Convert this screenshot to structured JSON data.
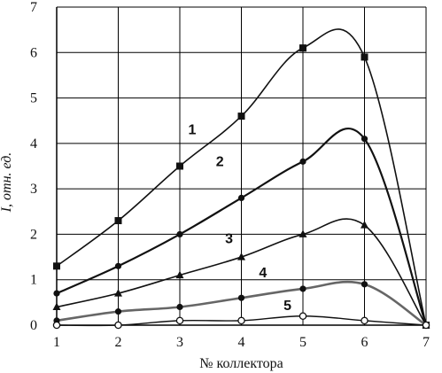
{
  "chart_data": {
    "type": "line",
    "xlabel": "№ коллектора",
    "ylabel": "I, отн. ед.",
    "x": [
      1,
      2,
      3,
      4,
      5,
      6,
      7
    ],
    "xlim": [
      1,
      7
    ],
    "ylim": [
      0,
      7
    ],
    "xticks": [
      "1",
      "2",
      "3",
      "4",
      "5",
      "6",
      "7"
    ],
    "yticks": [
      "0",
      "1",
      "2",
      "3",
      "4",
      "5",
      "6",
      "7"
    ],
    "grid": true,
    "legend": "none",
    "series": [
      {
        "name": "1",
        "values": [
          1.3,
          2.3,
          3.5,
          4.6,
          6.1,
          5.9,
          0.0
        ],
        "marker": "square"
      },
      {
        "name": "2",
        "values": [
          0.7,
          1.3,
          2.0,
          2.8,
          3.6,
          4.1,
          0.0
        ],
        "marker": "diamond"
      },
      {
        "name": "3",
        "values": [
          0.4,
          0.7,
          1.1,
          1.5,
          2.0,
          2.2,
          0.0
        ],
        "marker": "triangle"
      },
      {
        "name": "4",
        "values": [
          0.1,
          0.3,
          0.4,
          0.6,
          0.8,
          0.9,
          0.0
        ],
        "marker": "circle"
      },
      {
        "name": "5",
        "values": [
          0.0,
          0.0,
          0.1,
          0.1,
          0.2,
          0.1,
          0.0
        ],
        "marker": "open-circle"
      }
    ]
  }
}
